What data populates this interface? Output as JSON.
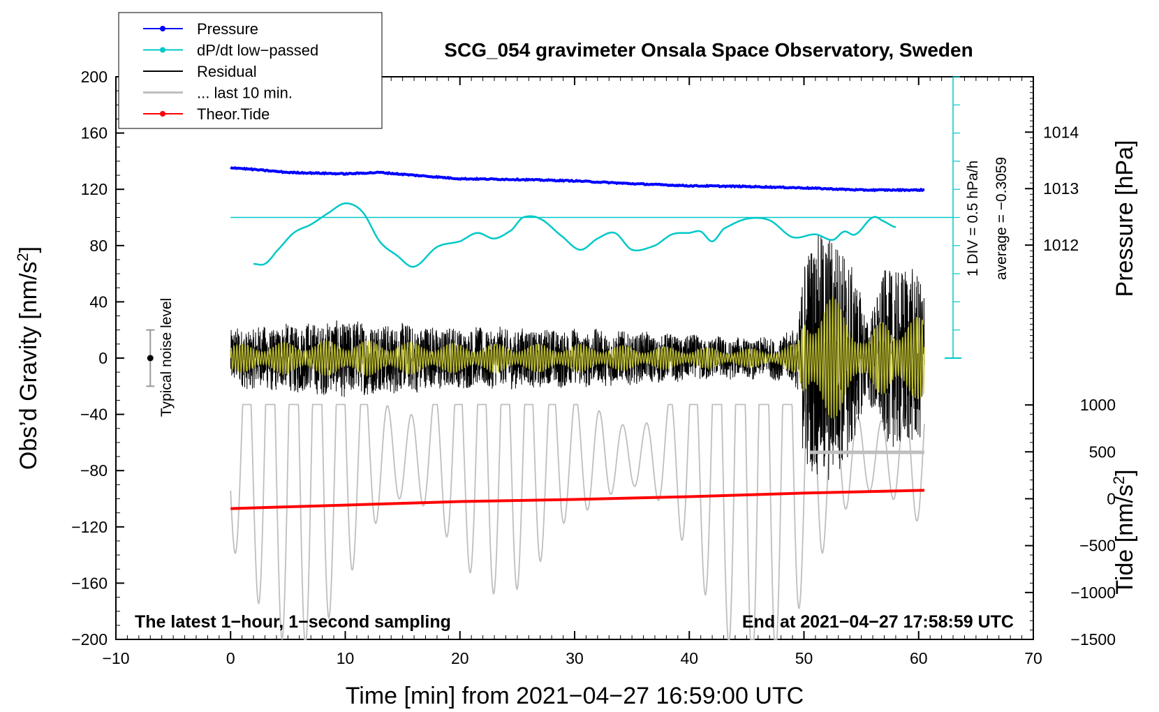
{
  "chart_data": {
    "type": "line",
    "title": "SCG_054 gravimeter Onsala Space Observatory, Sweden",
    "xlabel": "Time [min] from 2021−04−27 16:59:00 UTC",
    "ylabel_main": "Obs’d Gravity [nm/s",
    "ylabel_main_sup": "2",
    "ylabel_main_end": "]",
    "ylabel_pressure": "Pressure [hPa]",
    "ylabel_tide": "Tide [nm/s",
    "ylabel_tide_sup": "2",
    "ylabel_tide_end": "]",
    "xlim": [
      -10,
      70
    ],
    "ylim": [
      -200,
      200
    ],
    "x_ticks": [
      "−10",
      "0",
      "10",
      "20",
      "30",
      "40",
      "50",
      "60",
      "70"
    ],
    "x_tick_values": [
      -10,
      0,
      10,
      20,
      30,
      40,
      50,
      60,
      70
    ],
    "y_ticks": [
      "200",
      "160",
      "120",
      "80",
      "40",
      "0",
      "−40",
      "−80",
      "−120",
      "−160",
      "−200"
    ],
    "y_tick_values": [
      200,
      160,
      120,
      80,
      40,
      0,
      -40,
      -80,
      -120,
      -160,
      -200
    ],
    "pressure_ticks": [
      "1014",
      "1013",
      "1012"
    ],
    "pressure_tick_values": [
      1014,
      1013,
      1012
    ],
    "pressure_axis_ylim": [
      1010.0,
      1014.98
    ],
    "tide_ticks": [
      "1000",
      "500",
      "0",
      "−500",
      "−1000",
      "−1500"
    ],
    "tide_tick_values": [
      1000,
      500,
      0,
      -500,
      -1000,
      -1500
    ],
    "tide_axis_ylim": [
      -1500,
      1000
    ],
    "tide_axis_gravity_span": [
      -200,
      -33.3
    ],
    "legend": [
      {
        "label": "Pressure",
        "color": "#0000ff",
        "marker": true
      },
      {
        "label": "dP/dt low−passed",
        "color": "#00c8c8",
        "marker": true
      },
      {
        "label": "Residual",
        "color": "#000000",
        "marker": false
      },
      {
        "label": "... last 10 min.",
        "color": "#bebebe",
        "marker": false
      },
      {
        "label": "Theor.Tide",
        "color": "#ff0000",
        "marker": true
      }
    ],
    "legend_position": "top-left",
    "notes": {
      "left_bottom": "The latest 1−hour, 1−second sampling",
      "right_bottom": "End at 2021−04−27 17:58:59 UTC",
      "noise": "Typical noise level",
      "div": "1 DIV = 0.5 hPa/h",
      "average": "average = −0.3059"
    },
    "noise_marker": {
      "x": -7,
      "y": 0,
      "err": 20
    },
    "dpdt_reference_y": 100,
    "series": [
      {
        "name": "Pressure",
        "color": "#0000ff",
        "x": [
          0,
          5,
          10,
          13,
          16,
          20,
          25,
          30,
          35,
          40,
          45,
          50,
          55,
          58,
          60.5
        ],
        "y": [
          135.5,
          132,
          131,
          132,
          130,
          127.5,
          127,
          126,
          124,
          122.5,
          122,
          121,
          119.5,
          119.5,
          119.5
        ]
      },
      {
        "name": "dP/dt low−passed",
        "color": "#00c8c8",
        "x": [
          2,
          3,
          4,
          5.5,
          7,
          8.5,
          10,
          11.5,
          13,
          14.5,
          16,
          18,
          20,
          21.5,
          23,
          24.5,
          25.5,
          27,
          29,
          30.5,
          32,
          33.5,
          35,
          37,
          38.5,
          40,
          41,
          42,
          43,
          45,
          47,
          49,
          51,
          52.5,
          53.5,
          54.5,
          56,
          57,
          58
        ],
        "y": [
          67,
          67,
          76,
          89,
          95,
          103,
          110,
          104,
          83,
          73,
          65,
          79,
          83,
          89,
          85,
          91,
          100,
          99,
          86,
          77,
          85,
          89,
          77,
          80,
          88,
          89,
          90,
          83,
          92,
          99,
          98,
          86,
          88,
          84,
          90,
          88,
          100,
          97,
          93
        ]
      },
      {
        "name": "Theor.Tide",
        "color": "#ff0000",
        "x": [
          0,
          10,
          20,
          30,
          40,
          50,
          60.5
        ],
        "y": [
          -107,
          -104.5,
          -102,
          -100.5,
          -98.5,
          -96,
          -94
        ]
      }
    ],
    "residual_amplitude_envelope": {
      "x": [
        0,
        10,
        20,
        30,
        40,
        45,
        48,
        49.5,
        50,
        52,
        54,
        55.5,
        57,
        59,
        60.5
      ],
      "y": [
        18,
        24,
        19,
        18,
        14,
        12,
        13,
        20,
        70,
        85,
        65,
        25,
        55,
        60,
        50
      ]
    },
    "last10_band": {
      "x0": 50.5,
      "x1": 60.5,
      "y": -67
    }
  }
}
